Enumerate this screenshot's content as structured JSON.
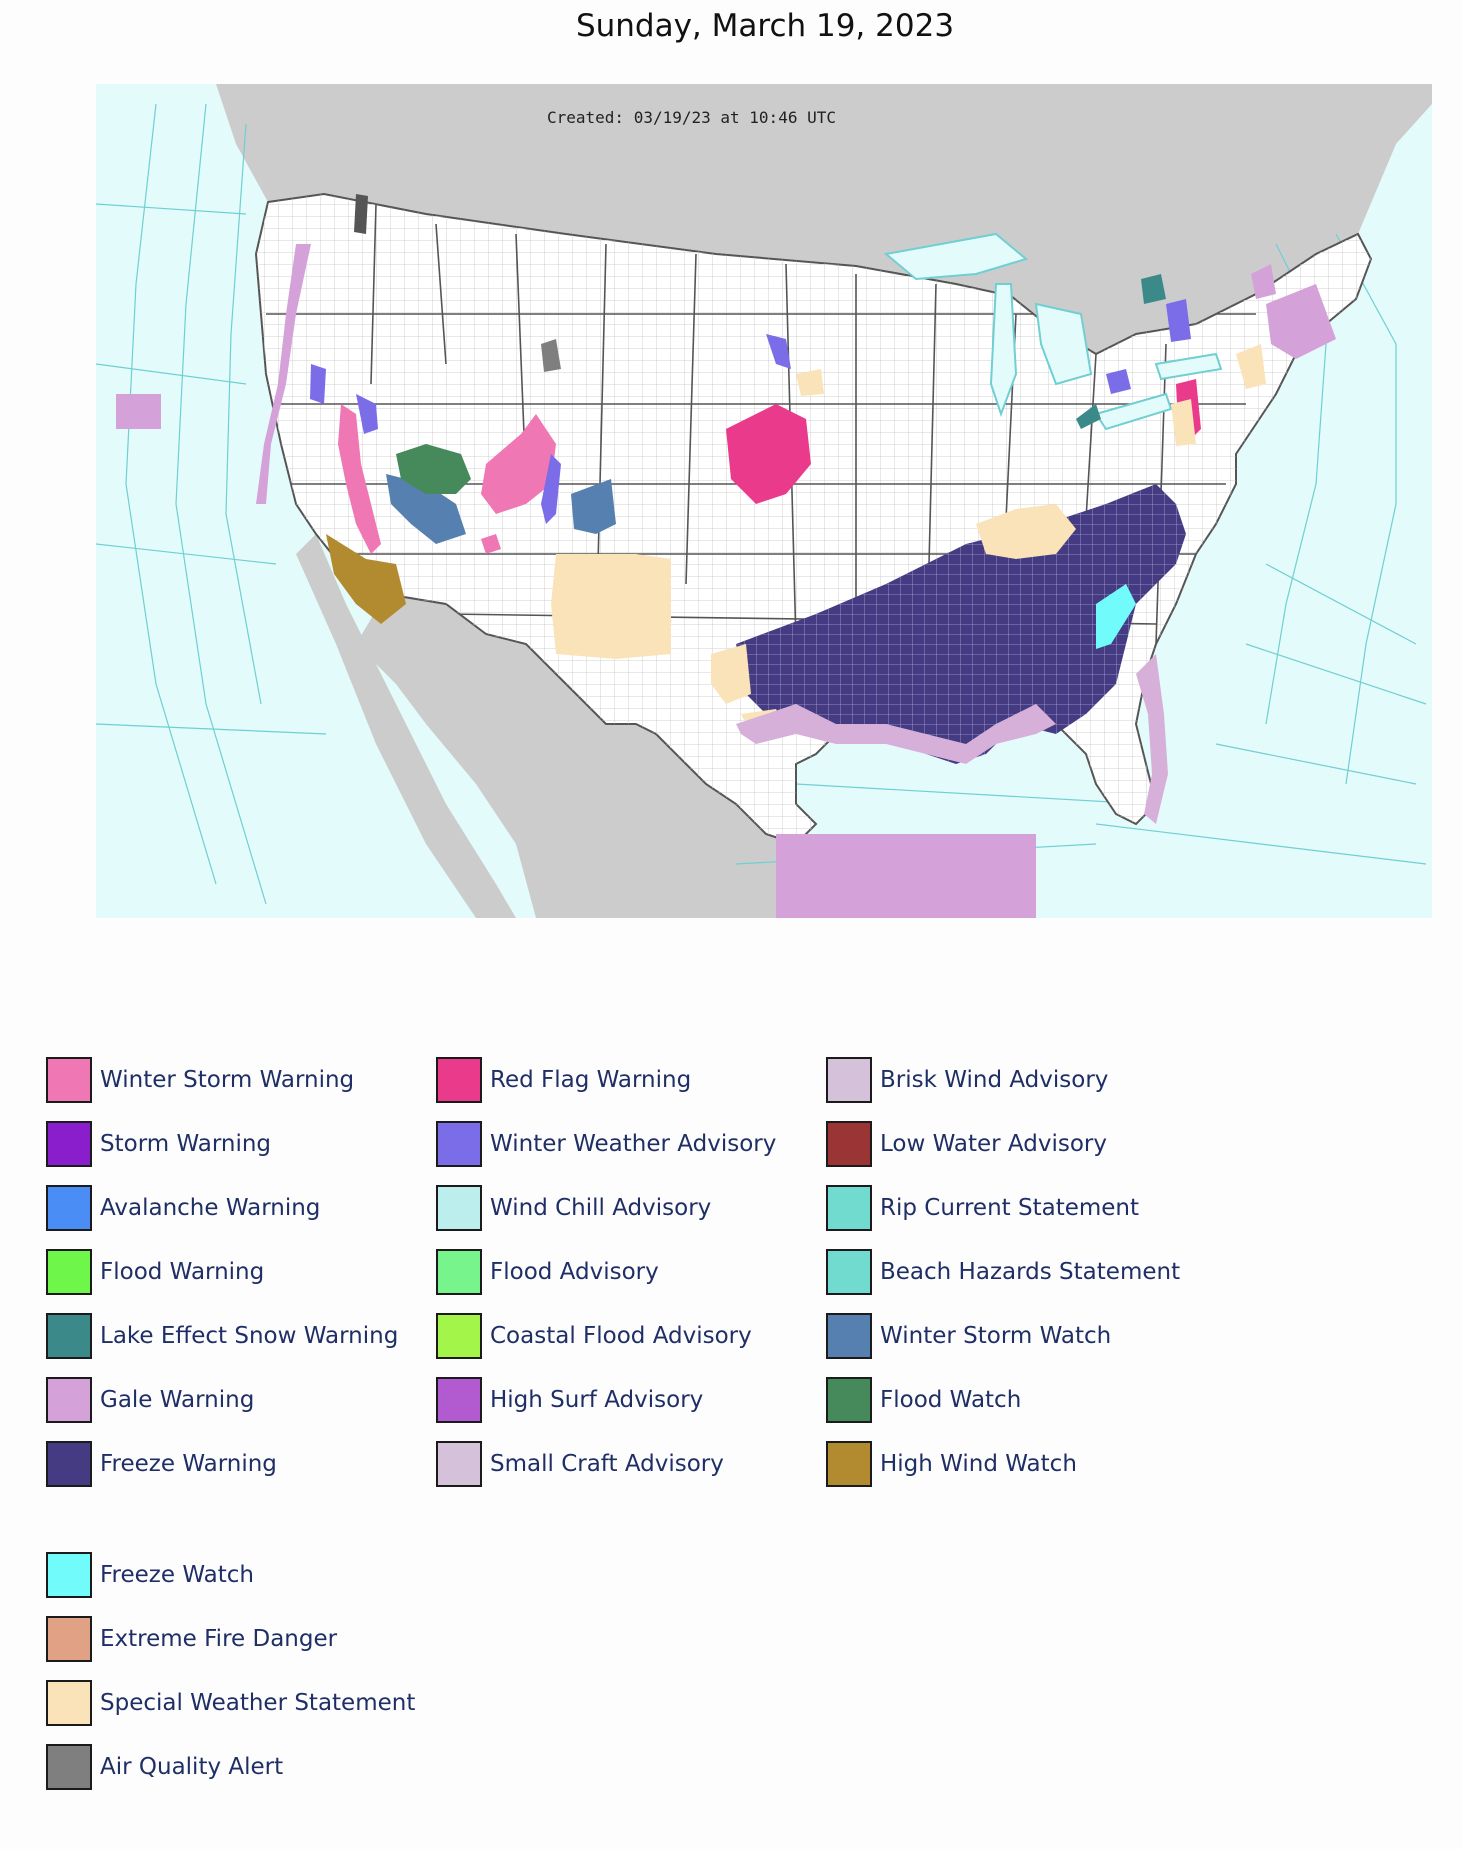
{
  "header": {
    "date": "Sunday, March 19, 2023"
  },
  "map": {
    "created_stamp": "Created: 03/19/23 at 10:46 UTC",
    "colors": {
      "ocean": "#e4fbfb",
      "land_outside": "#cccccc",
      "land_us": "#ffffff",
      "county_lines": "#bdbdbd",
      "state_lines": "#555555",
      "marine_zone_lines": "#6fcfd2"
    }
  },
  "legend": {
    "columns": [
      [
        {
          "label": "Winter Storm Warning",
          "color": "#ee77b4"
        },
        {
          "label": "Storm Warning",
          "color": "#8a1ecc"
        },
        {
          "label": "Avalanche Warning",
          "color": "#4a8ef5"
        },
        {
          "label": "Flood Warning",
          "color": "#6ef74a"
        },
        {
          "label": "Lake Effect Snow Warning",
          "color": "#3b8a89"
        },
        {
          "label": "Gale Warning",
          "color": "#d4a2d8"
        },
        {
          "label": "Freeze Warning",
          "color": "#443b83"
        }
      ],
      [
        {
          "label": "Red Flag Warning",
          "color": "#e93a8b"
        },
        {
          "label": "Winter Weather Advisory",
          "color": "#7b6ce8"
        },
        {
          "label": "Wind Chill Advisory",
          "color": "#bdeeee"
        },
        {
          "label": "Flood Advisory",
          "color": "#77f58c"
        },
        {
          "label": "Coastal Flood Advisory",
          "color": "#a4f54a"
        },
        {
          "label": "High Surf Advisory",
          "color": "#b25ad0"
        },
        {
          "label": "Small Craft Advisory",
          "color": "#d5c1d9"
        }
      ],
      [
        {
          "label": "Brisk Wind Advisory",
          "color": "#d5c1d9"
        },
        {
          "label": "Low Water Advisory",
          "color": "#9b3535"
        },
        {
          "label": "Rip Current Statement",
          "color": "#72dbcf"
        },
        {
          "label": "Beach Hazards Statement",
          "color": "#72dbcf"
        },
        {
          "label": "Winter Storm Watch",
          "color": "#5580b0"
        },
        {
          "label": "Flood Watch",
          "color": "#468a5b"
        },
        {
          "label": "High Wind Watch",
          "color": "#b28a30"
        }
      ]
    ],
    "extra": [
      {
        "label": "Freeze Watch",
        "color": "#72fbfb"
      },
      {
        "label": "Extreme Fire Danger",
        "color": "#e0a185"
      },
      {
        "label": "Special Weather Statement",
        "color": "#fae3b8"
      },
      {
        "label": "Air Quality Alert",
        "color": "#7f7f7f"
      }
    ]
  }
}
